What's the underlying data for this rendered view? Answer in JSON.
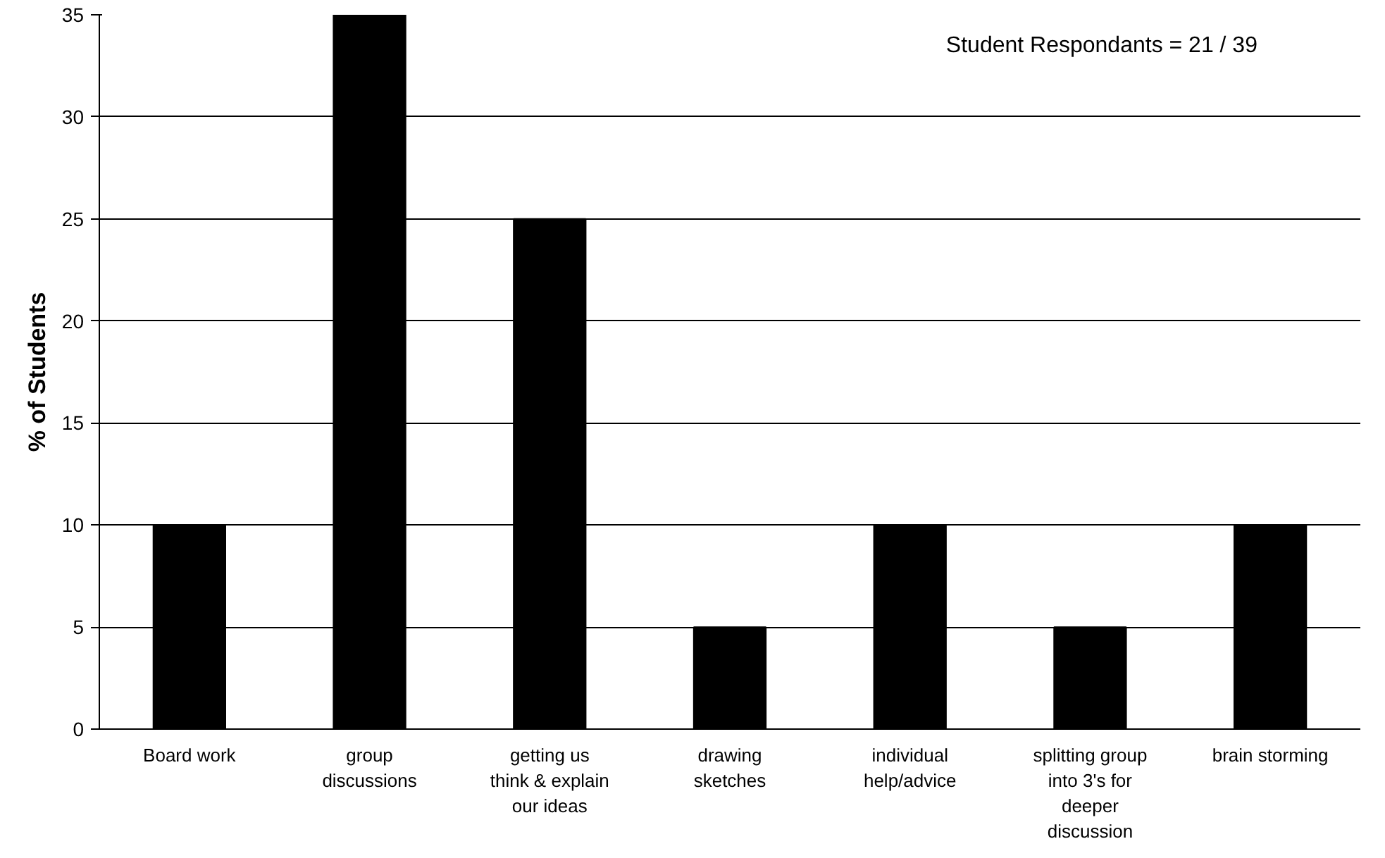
{
  "chart_data": {
    "type": "bar",
    "ylabel": "% of Students",
    "categories": [
      "Board work",
      "group discussions",
      "getting us think & explain our ideas",
      "drawing sketches",
      "individual help/advice",
      "splitting group into 3's for deeper discussion",
      "brain storming"
    ],
    "values": [
      10,
      35,
      25,
      5,
      10,
      5,
      10
    ],
    "color": "#000000",
    "ylim": [
      0,
      35
    ],
    "yticks": [
      0,
      5,
      10,
      15,
      20,
      25,
      30,
      35
    ],
    "grid": "y",
    "annotations": [
      "Student Respondants = 21 / 39"
    ]
  }
}
